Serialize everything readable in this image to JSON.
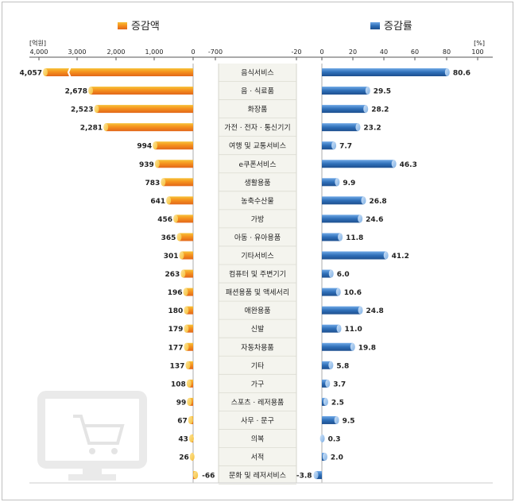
{
  "chart_data": [
    {
      "type": "bar",
      "legend": "증감액",
      "unit": "[억원]",
      "xlim": [
        4000,
        -700
      ],
      "ticks": [
        "4,000",
        "3,000",
        "2,000",
        "1,000",
        "0",
        "-700"
      ],
      "categories": [
        "음식서비스",
        "음 · 식료품",
        "화장품",
        "가전 · 전자 · 통신기기",
        "여행 및 교통서비스",
        "e쿠폰서비스",
        "생활용품",
        "농축수산물",
        "가방",
        "아동 · 유아용품",
        "기타서비스",
        "컴퓨터 및 주변기기",
        "패션용품 및 액세서리",
        "애완용품",
        "신발",
        "자동차용품",
        "기타",
        "가구",
        "스포츠 · 레저용품",
        "사무 · 문구",
        "의복",
        "서적",
        "문화 및 레저서비스"
      ],
      "values": [
        4057,
        2678,
        2523,
        2281,
        994,
        939,
        783,
        641,
        456,
        365,
        301,
        263,
        196,
        180,
        179,
        177,
        137,
        108,
        99,
        67,
        43,
        26,
        -66
      ],
      "labels": [
        "4,057",
        "2,678",
        "2,523",
        "2,281",
        "994",
        "939",
        "783",
        "641",
        "456",
        "365",
        "301",
        "263",
        "196",
        "180",
        "179",
        "177",
        "137",
        "108",
        "99",
        "67",
        "43",
        "26",
        "-66"
      ],
      "color": "#f39a1e"
    },
    {
      "type": "bar",
      "legend": "증감률",
      "unit": "[%]",
      "xlim": [
        -20,
        100
      ],
      "ticks": [
        "-20",
        "0",
        "20",
        "40",
        "60",
        "80",
        "100"
      ],
      "categories": [
        "음식서비스",
        "음 · 식료품",
        "화장품",
        "가전 · 전자 · 통신기기",
        "여행 및 교통서비스",
        "e쿠폰서비스",
        "생활용품",
        "농축수산물",
        "가방",
        "아동 · 유아용품",
        "기타서비스",
        "컴퓨터 및 주변기기",
        "패션용품 및 액세서리",
        "애완용품",
        "신발",
        "자동차용품",
        "기타",
        "가구",
        "스포츠 · 레저용품",
        "사무 · 문구",
        "의복",
        "서적",
        "문화 및 레저서비스"
      ],
      "values": [
        80.6,
        29.5,
        28.2,
        23.2,
        7.7,
        46.3,
        9.9,
        26.8,
        24.6,
        11.8,
        41.2,
        6.0,
        10.6,
        24.8,
        11.0,
        19.8,
        5.8,
        3.7,
        2.5,
        9.5,
        0.3,
        2.0,
        -3.8
      ],
      "labels": [
        "80.6",
        "29.5",
        "28.2",
        "23.2",
        "7.7",
        "46.3",
        "9.9",
        "26.8",
        "24.6",
        "11.8",
        "41.2",
        "6.0",
        "10.6",
        "24.8",
        "11.0",
        "19.8",
        "5.8",
        "3.7",
        "2.5",
        "9.5",
        "0.3",
        "2.0",
        "-3.8"
      ],
      "color": "#2e6db3"
    }
  ]
}
